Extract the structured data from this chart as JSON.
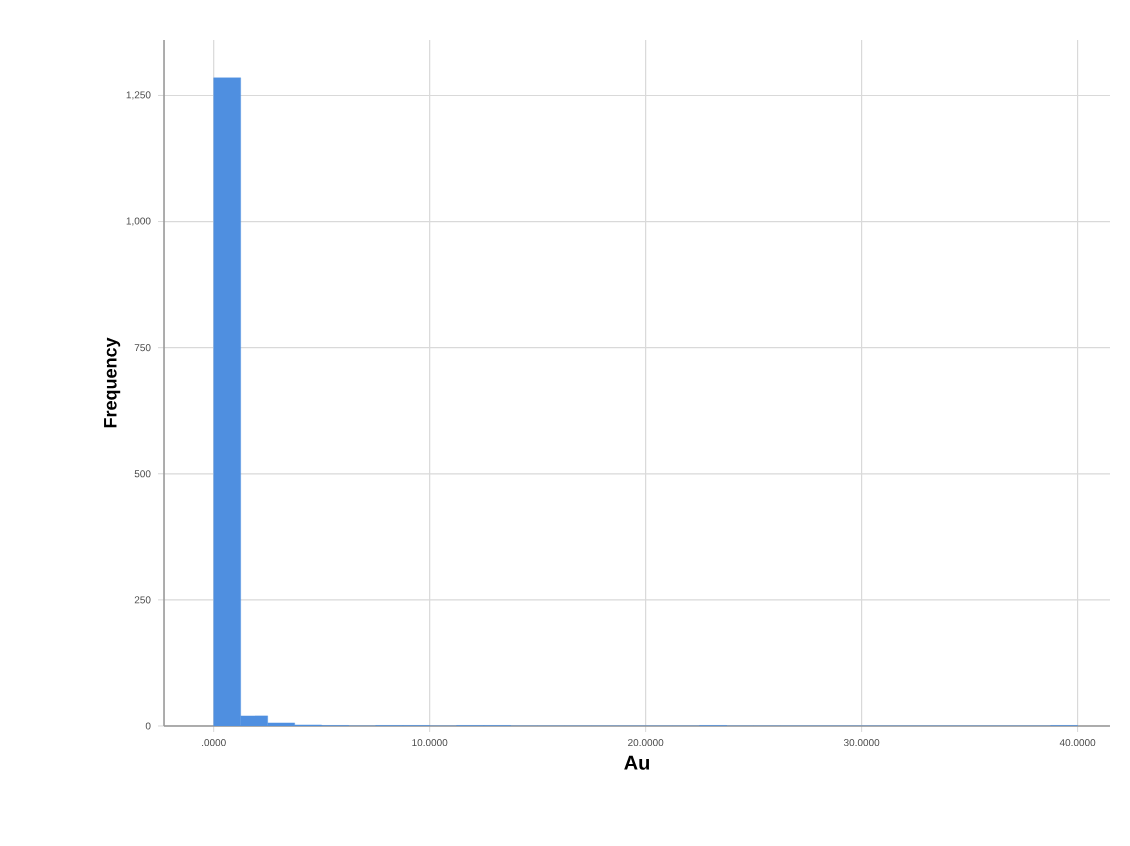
{
  "chart_data": {
    "type": "histogram",
    "xlabel": "Au",
    "ylabel": "Frequency",
    "color": "#4f8fe0",
    "grid": true,
    "bins": [
      0,
      1.25,
      2.5,
      3.75,
      5,
      6.25,
      7.5,
      8.75,
      10,
      11.25,
      12.5,
      13.75,
      15,
      16.25,
      17.5,
      18.75,
      20,
      21.25,
      22.5,
      23.75,
      25,
      26.25,
      27.5,
      28.75,
      30,
      31.25,
      32.5,
      33.75,
      35,
      36.25,
      37.5,
      38.75,
      40
    ],
    "values": [
      1285,
      20,
      6,
      2,
      1,
      0,
      1,
      1,
      0,
      1,
      1,
      0,
      0,
      0,
      0,
      0,
      0,
      0,
      1,
      0,
      0,
      0,
      0,
      0,
      0,
      0,
      0,
      0,
      0,
      0,
      0,
      1
    ],
    "xlim": [
      -2.3,
      41.5
    ],
    "ylim": [
      0,
      1360
    ],
    "xticks": [
      {
        "value": 0,
        "label": ".0000"
      },
      {
        "value": 10,
        "label": "10.0000"
      },
      {
        "value": 20,
        "label": "20.0000"
      },
      {
        "value": 30,
        "label": "30.0000"
      },
      {
        "value": 40,
        "label": "40.0000"
      }
    ],
    "yticks": [
      0,
      250,
      500,
      750,
      {
        "value": 1000,
        "label": "1,000"
      },
      {
        "value": 1250,
        "label": "1,250"
      }
    ]
  }
}
